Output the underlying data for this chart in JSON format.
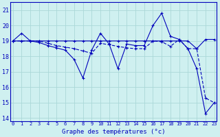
{
  "title": "Graphe des températures (°c)",
  "bg_color": "#cff0f0",
  "grid_color": "#aad8d8",
  "line_color": "#0000bb",
  "ylim": [
    13.8,
    21.5
  ],
  "xlim": [
    -0.3,
    23.3
  ],
  "yticks": [
    14,
    15,
    16,
    17,
    18,
    19,
    20,
    21
  ],
  "xticks": [
    0,
    1,
    2,
    3,
    4,
    5,
    6,
    7,
    8,
    9,
    10,
    11,
    12,
    13,
    14,
    15,
    16,
    17,
    18,
    19,
    20,
    21,
    22,
    23
  ],
  "series1_x": [
    0,
    1,
    2,
    3,
    4,
    5,
    6,
    7,
    8,
    9,
    10,
    11,
    12,
    13,
    14,
    15,
    16,
    17,
    18,
    19,
    20,
    21,
    22,
    23
  ],
  "series1_y": [
    19.0,
    19.5,
    19.0,
    18.9,
    18.7,
    18.55,
    18.4,
    17.8,
    16.6,
    18.4,
    19.5,
    18.8,
    17.2,
    18.8,
    18.7,
    18.7,
    20.0,
    20.8,
    19.3,
    19.1,
    18.5,
    17.2,
    14.3,
    15.0
  ],
  "series2_x": [
    0,
    1,
    2,
    3,
    4,
    5,
    6,
    7,
    8,
    9,
    10,
    11,
    12,
    13,
    14,
    15,
    16,
    17,
    18,
    19,
    20,
    21,
    22,
    23
  ],
  "series2_y": [
    19.0,
    19.0,
    19.0,
    19.0,
    18.85,
    18.7,
    18.6,
    18.5,
    18.35,
    18.2,
    18.85,
    18.75,
    18.65,
    18.55,
    18.5,
    18.5,
    19.0,
    18.95,
    18.65,
    19.1,
    18.5,
    18.5,
    15.3,
    15.0
  ],
  "series3_x": [
    0,
    1,
    2,
    3,
    4,
    5,
    6,
    7,
    8,
    9,
    10,
    11,
    12,
    13,
    14,
    15,
    16,
    17,
    18,
    19,
    20,
    21,
    22,
    23
  ],
  "series3_y": [
    19.0,
    19.0,
    19.0,
    19.0,
    19.0,
    19.0,
    19.0,
    19.0,
    19.0,
    19.0,
    19.0,
    19.0,
    19.0,
    19.0,
    19.0,
    19.0,
    19.0,
    19.0,
    19.0,
    19.0,
    19.0,
    18.5,
    19.1,
    19.1
  ],
  "xlabel_fontsize": 6.5,
  "ytick_fontsize": 6,
  "xtick_fontsize": 5
}
